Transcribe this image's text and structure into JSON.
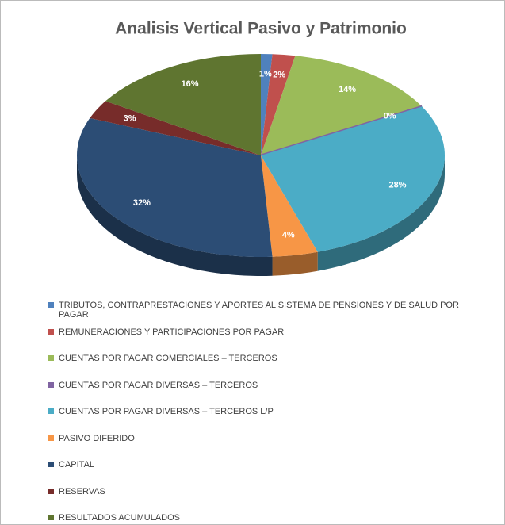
{
  "chart_data": {
    "type": "pie",
    "title": "Analisis Vertical Pasivo y Patrimonio",
    "categories": [
      "TRIBUTOS, CONTRAPRESTACIONES Y APORTES AL SISTEMA DE PENSIONES Y DE SALUD POR PAGAR",
      "REMUNERACIONES Y PARTICIPACIONES POR PAGAR",
      "CUENTAS POR PAGAR COMERCIALES – TERCEROS",
      "CUENTAS POR PAGAR DIVERSAS – TERCEROS",
      "CUENTAS POR PAGAR DIVERSAS – TERCEROS L/P",
      "PASIVO DIFERIDO",
      "CAPITAL",
      "RESERVAS",
      "RESULTADOS ACUMULADOS"
    ],
    "values": [
      1,
      2,
      14,
      0,
      28,
      4,
      32,
      3,
      16
    ],
    "value_labels": [
      "1%",
      "2%",
      "14%",
      "0%",
      "28%",
      "4%",
      "32%",
      "3%",
      "16%"
    ],
    "colors": [
      "#4f81bd",
      "#c0504d",
      "#9bbb59",
      "#8064a2",
      "#4bacc6",
      "#f79646",
      "#2c4d75",
      "#772c2a",
      "#5f7530"
    ],
    "legend": "bottom"
  }
}
